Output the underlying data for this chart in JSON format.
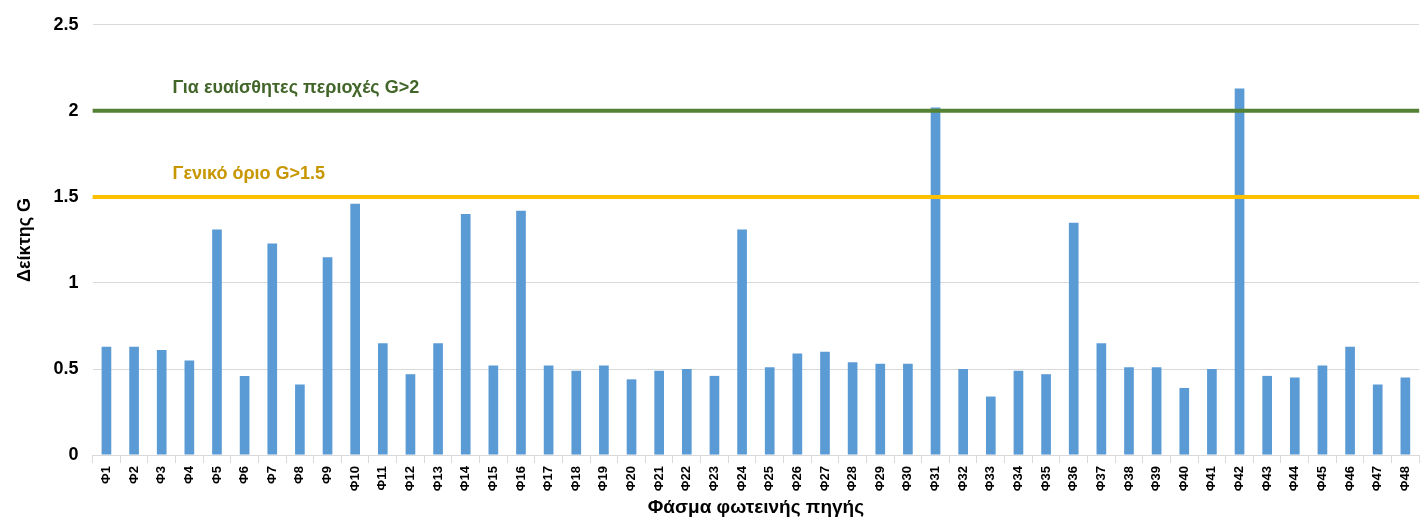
{
  "chart_data": {
    "type": "bar",
    "xlabel": "Φάσμα φωτεινής πηγής",
    "ylabel": "Δείκτης G",
    "categories": [
      "Φ1",
      "Φ2",
      "Φ3",
      "Φ4",
      "Φ5",
      "Φ6",
      "Φ7",
      "Φ8",
      "Φ9",
      "Φ10",
      "Φ11",
      "Φ12",
      "Φ13",
      "Φ14",
      "Φ15",
      "Φ16",
      "Φ17",
      "Φ18",
      "Φ19",
      "Φ20",
      "Φ21",
      "Φ22",
      "Φ23",
      "Φ24",
      "Φ25",
      "Φ26",
      "Φ27",
      "Φ28",
      "Φ29",
      "Φ30",
      "Φ31",
      "Φ32",
      "Φ33",
      "Φ34",
      "Φ35",
      "Φ36",
      "Φ37",
      "Φ38",
      "Φ39",
      "Φ40",
      "Φ41",
      "Φ42",
      "Φ43",
      "Φ44",
      "Φ45",
      "Φ46",
      "Φ47",
      "Φ48"
    ],
    "values": [
      0.63,
      0.63,
      0.61,
      0.55,
      1.31,
      0.46,
      1.23,
      0.41,
      1.15,
      1.46,
      0.65,
      0.47,
      0.65,
      1.4,
      0.52,
      1.42,
      0.52,
      0.49,
      0.52,
      0.44,
      0.49,
      0.5,
      0.46,
      1.31,
      0.51,
      0.59,
      0.6,
      0.54,
      0.53,
      0.53,
      2.02,
      0.5,
      0.34,
      0.49,
      0.47,
      1.35,
      0.65,
      0.51,
      0.51,
      0.39,
      0.5,
      2.13,
      0.46,
      0.45,
      0.52,
      0.63,
      0.41,
      0.45
    ],
    "color": "#5b9bd5",
    "ylim": [
      0,
      2.5
    ],
    "yticks": [
      0,
      0.5,
      1,
      1.5,
      2,
      2.5
    ],
    "grid": "y",
    "legend": false,
    "ref_lines": [
      {
        "axis": "y",
        "value": 2,
        "label": "Για ευαίσθητες περιοχές G>2",
        "color": "#548235"
      },
      {
        "axis": "y",
        "value": 1.5,
        "label": "Γενικό όριο G>1.5",
        "color": "#ffc000"
      }
    ]
  }
}
